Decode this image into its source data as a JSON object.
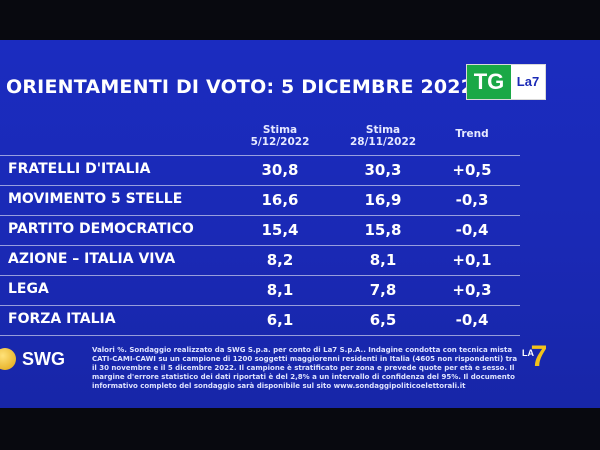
{
  "title": "ORIENTAMENTI DI VOTO: 5 DICEMBRE 2022",
  "logo": {
    "tg": "TG",
    "la7": "La7"
  },
  "columns": {
    "col1_line1": "Stima",
    "col1_line2": "5/12/2022",
    "col2_line1": "Stima",
    "col2_line2": "28/11/2022",
    "trend": "Trend"
  },
  "chart_data": {
    "type": "table",
    "title": "ORIENTAMENTI DI VOTO: 5 DICEMBRE 2022",
    "columns": [
      "Stima 5/12/2022",
      "Stima 28/11/2022",
      "Trend"
    ],
    "rows": [
      {
        "party": "FRATELLI D'ITALIA",
        "stima_5_12": "30,8",
        "stima_28_11": "30,3",
        "trend": "+0,5"
      },
      {
        "party": "MOVIMENTO 5 STELLE",
        "stima_5_12": "16,6",
        "stima_28_11": "16,9",
        "trend": "-0,3"
      },
      {
        "party": "PARTITO DEMOCRATICO",
        "stima_5_12": "15,4",
        "stima_28_11": "15,8",
        "trend": "-0,4"
      },
      {
        "party": "AZIONE – ITALIA VIVA",
        "stima_5_12": "8,2",
        "stima_28_11": "8,1",
        "trend": "+0,1"
      },
      {
        "party": "LEGA",
        "stima_5_12": "8,1",
        "stima_28_11": "7,8",
        "trend": "+0,3"
      },
      {
        "party": "FORZA ITALIA",
        "stima_5_12": "6,1",
        "stima_28_11": "6,5",
        "trend": "-0,4"
      }
    ]
  },
  "source_brand": "SWG",
  "footnote": "Valori %. Sondaggio realizzato da SWG S.p.a. per conto di La7 S.p.A.. Indagine condotta con tecnica mista CATI-CAMI-CAWI su un campione di 1200 soggetti maggiorenni residenti in Italia (4605 non rispondenti) tra il 30 novembre e il 5 dicembre 2022. Il campione è stratificato per zona e prevede quote per età e sesso. Il margine d'errore statistico dei dati riportati è del 2,8% a un intervallo di confidenza del 95%. Il documento informativo completo del sondaggio sarà disponibile sul sito www.sondaggipoliticoelettorali.it",
  "corner_badge": {
    "label": "LA",
    "mark": "7"
  },
  "colors": {
    "background": "#1a29b5",
    "text": "#ffffff",
    "logo_green": "#1aa846",
    "badge_gold": "#f2c21a"
  }
}
